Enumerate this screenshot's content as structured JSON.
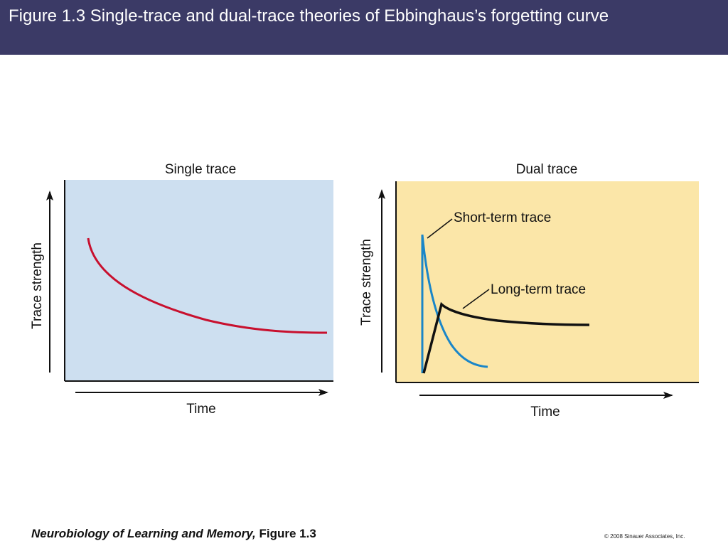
{
  "header": {
    "title": "Figure 1.3  Single-trace and dual-trace theories of Ebbinghaus’s forgetting curve"
  },
  "panels": {
    "single": {
      "title": "Single trace",
      "ylabel": "Trace strength",
      "xlabel": "Time",
      "background": "#cddff0",
      "curve_color": "#c8102e"
    },
    "dual": {
      "title": "Dual trace",
      "ylabel": "Trace strength",
      "xlabel": "Time",
      "background": "#fbe6a8",
      "short_term_label": "Short-term trace",
      "long_term_label": "Long-term trace",
      "short_term_color": "#1a86c8",
      "long_term_color": "#111111"
    }
  },
  "footer": {
    "book_title": "Neurobiology of Learning and Memory,",
    "figure_ref": "Figure 1.3",
    "copyright": "© 2008 Sinauer Associates, Inc."
  }
}
